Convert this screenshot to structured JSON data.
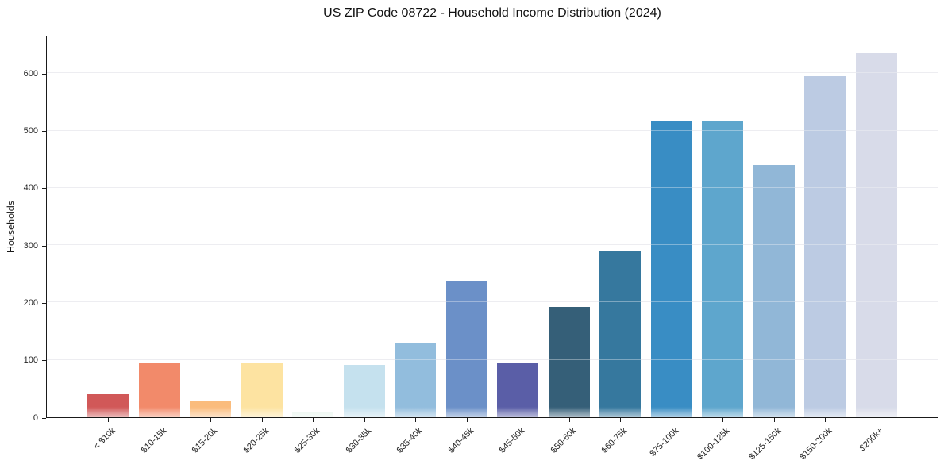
{
  "chart_data": {
    "type": "bar",
    "title": "US ZIP Code 08722 - Household Income Distribution (2024)",
    "xlabel": "",
    "ylabel": "Households",
    "categories": [
      "< $10k",
      "$10-15k",
      "$15-20k",
      "$20-25k",
      "$25-30k",
      "$30-35k",
      "$35-40k",
      "$40-45k",
      "$45-50k",
      "$50-60k",
      "$60-75k",
      "$75-100k",
      "$100-125k",
      "$125-150k",
      "$150-200k",
      "$200k+"
    ],
    "values": [
      40,
      95,
      28,
      96,
      10,
      91,
      130,
      238,
      94,
      192,
      289,
      517,
      516,
      440,
      595,
      635
    ],
    "bar_colors": [
      "#d15858",
      "#f28a6a",
      "#fabc7d",
      "#fde3a1",
      "#e8f5ee",
      "#c5e1ee",
      "#92bddd",
      "#6b90c8",
      "#5a5ea7",
      "#355f78",
      "#36789e",
      "#398dc4",
      "#5ea6cd",
      "#91b7d7",
      "#bccbe3",
      "#d8dbe9"
    ],
    "ylim": [
      0,
      667
    ],
    "yticks": [
      0,
      100,
      200,
      300,
      400,
      500,
      600
    ],
    "grid": "horizontal",
    "legend": "none"
  },
  "style_colors": {
    "gridline": "#e8e8ed",
    "spine": "#1a1a1a",
    "background": "#ffffff",
    "text": "#262626"
  }
}
